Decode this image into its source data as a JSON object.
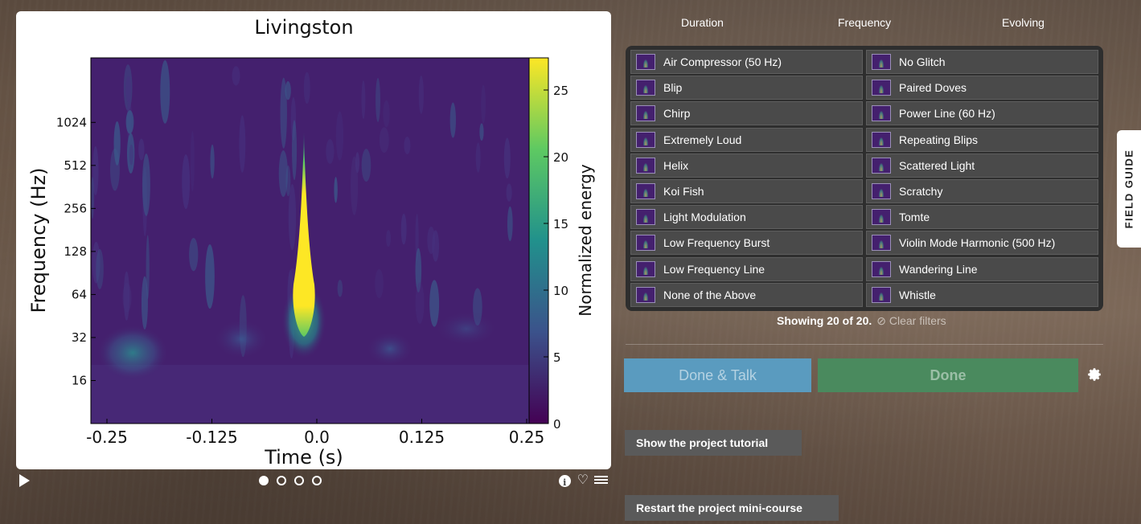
{
  "subject": {
    "chart_data": {
      "type": "heatmap",
      "title": "Livingston",
      "xlabel": "Time (s)",
      "ylabel": "Frequency (Hz)",
      "x_ticks": [
        "-0.25",
        "-0.125",
        "0.0",
        "0.125",
        "0.25"
      ],
      "y_ticks": [
        "16",
        "32",
        "64",
        "128",
        "256",
        "512",
        "1024"
      ],
      "colorbar_label": "Normalized energy",
      "colorbar_ticks": [
        "0",
        "5",
        "10",
        "15",
        "20",
        "25"
      ],
      "xlim": [
        -0.25,
        0.25
      ],
      "ylim_log2": [
        3,
        11.5
      ],
      "colorbar_range": [
        0,
        25
      ],
      "colormap": "viridis"
    },
    "frames": [
      true,
      false,
      false,
      false
    ],
    "icons": [
      "play-icon",
      "info-icon",
      "heart-icon",
      "list-icon"
    ]
  },
  "filters": [
    "Duration",
    "Frequency",
    "Evolving"
  ],
  "choices": [
    "Air Compressor (50 Hz)",
    "No Glitch",
    "Blip",
    "Paired Doves",
    "Chirp",
    "Power Line (60 Hz)",
    "Extremely Loud",
    "Repeating Blips",
    "Helix",
    "Scattered Light",
    "Koi Fish",
    "Scratchy",
    "Light Modulation",
    "Tomte",
    "Low Frequency Burst",
    "Violin Mode Harmonic (500 Hz)",
    "Low Frequency Line",
    "Wandering Line",
    "None of the Above",
    "Whistle"
  ],
  "status": {
    "showing": "Showing 20 of 20.",
    "clear": "⊘ Clear filters"
  },
  "actions": {
    "done_talk": "Done & Talk",
    "done": "Done",
    "tutorial": "Show the project tutorial",
    "minicourse": "Restart the project mini-course",
    "field_guide": "FIELD GUIDE"
  },
  "colors": {
    "talk": "#5a9bbf",
    "done": "#4a8a5e",
    "panel": "#2e2e2e",
    "button_dark": "#5a5a5a"
  }
}
